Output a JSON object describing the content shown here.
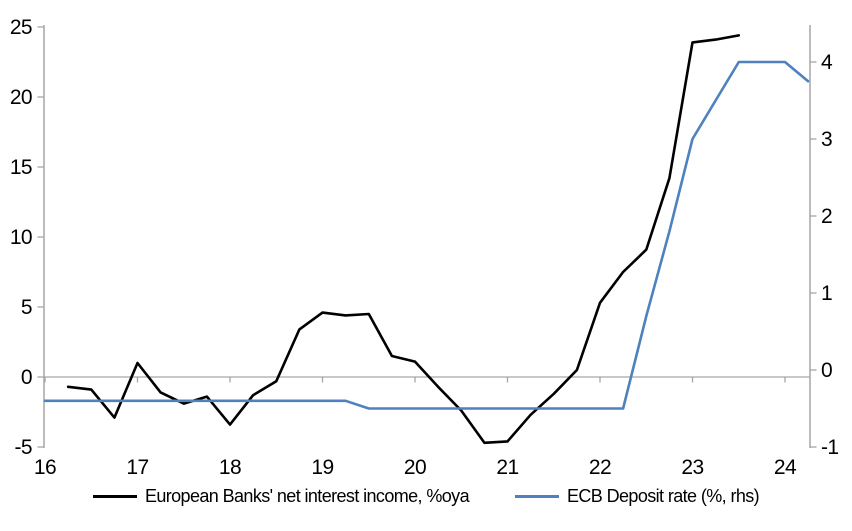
{
  "chart_data": {
    "type": "line",
    "title": "",
    "x_axis": {
      "ticks": [
        "16",
        "17",
        "18",
        "19",
        "20",
        "21",
        "22",
        "23",
        "24"
      ],
      "tick_values": [
        16,
        17,
        18,
        19,
        20,
        21,
        22,
        23,
        24
      ],
      "range": [
        16,
        24.3
      ],
      "note": "years 2016-2024, quarterly data"
    },
    "left_axis": {
      "ticks": [
        "25",
        "20",
        "15",
        "10",
        "5",
        "0",
        "-5"
      ],
      "tick_values": [
        25,
        20,
        15,
        10,
        5,
        0,
        -5
      ],
      "range": [
        -5,
        25.2
      ]
    },
    "right_axis": {
      "ticks": [
        "4",
        "3",
        "2",
        "1",
        "0",
        "-1"
      ],
      "tick_values": [
        4,
        3,
        2,
        1,
        0,
        -1
      ],
      "range": [
        -1,
        4.5
      ]
    },
    "grid": "zero-line-only",
    "legend_position": "bottom-center",
    "series": [
      {
        "name": "European Banks' net interest income, %oya",
        "axis": "left",
        "color": "#000000",
        "x": [
          16.25,
          16.5,
          16.75,
          17.0,
          17.25,
          17.5,
          17.75,
          18.0,
          18.25,
          18.5,
          18.75,
          19.0,
          19.25,
          19.5,
          19.75,
          20.0,
          20.25,
          20.5,
          20.75,
          21.0,
          21.25,
          21.5,
          21.75,
          22.0,
          22.25,
          22.5,
          22.75,
          23.0,
          23.25,
          23.5
        ],
        "values": [
          -0.7,
          -0.9,
          -2.9,
          1.0,
          -1.1,
          -1.9,
          -1.4,
          -3.4,
          -1.3,
          -0.3,
          3.4,
          4.6,
          4.4,
          4.5,
          1.5,
          1.1,
          -0.7,
          -2.4,
          -4.7,
          -4.6,
          -2.7,
          -1.2,
          0.5,
          5.3,
          7.5,
          9.1,
          14.2,
          23.9,
          24.1,
          24.4
        ]
      },
      {
        "name": "ECB Deposit rate (%, rhs)",
        "axis": "right",
        "color": "#4e81bd",
        "x": [
          16.0,
          16.25,
          16.5,
          16.75,
          17.0,
          17.25,
          17.5,
          17.75,
          18.0,
          18.25,
          18.5,
          18.75,
          19.0,
          19.25,
          19.5,
          19.75,
          20.0,
          20.25,
          20.5,
          20.75,
          21.0,
          21.25,
          21.5,
          21.75,
          22.0,
          22.25,
          22.5,
          22.75,
          23.0,
          23.25,
          23.5,
          23.75,
          24.0,
          24.25
        ],
        "values": [
          -0.4,
          -0.4,
          -0.4,
          -0.4,
          -0.4,
          -0.4,
          -0.4,
          -0.4,
          -0.4,
          -0.4,
          -0.4,
          -0.4,
          -0.4,
          -0.4,
          -0.5,
          -0.5,
          -0.5,
          -0.5,
          -0.5,
          -0.5,
          -0.5,
          -0.5,
          -0.5,
          -0.5,
          -0.5,
          -0.5,
          0.7,
          1.8,
          3.0,
          3.5,
          4.0,
          4.0,
          4.0,
          3.75
        ]
      }
    ],
    "legend": [
      {
        "label": "European Banks' net interest income, %oya",
        "color": "#000000"
      },
      {
        "label": "ECB Deposit rate (%, rhs)",
        "color": "#4e81bd"
      }
    ],
    "colors": {
      "axis": "#a6a6a6",
      "background": "#ffffff",
      "series_black": "#000000",
      "series_blue": "#4e81bd"
    }
  }
}
